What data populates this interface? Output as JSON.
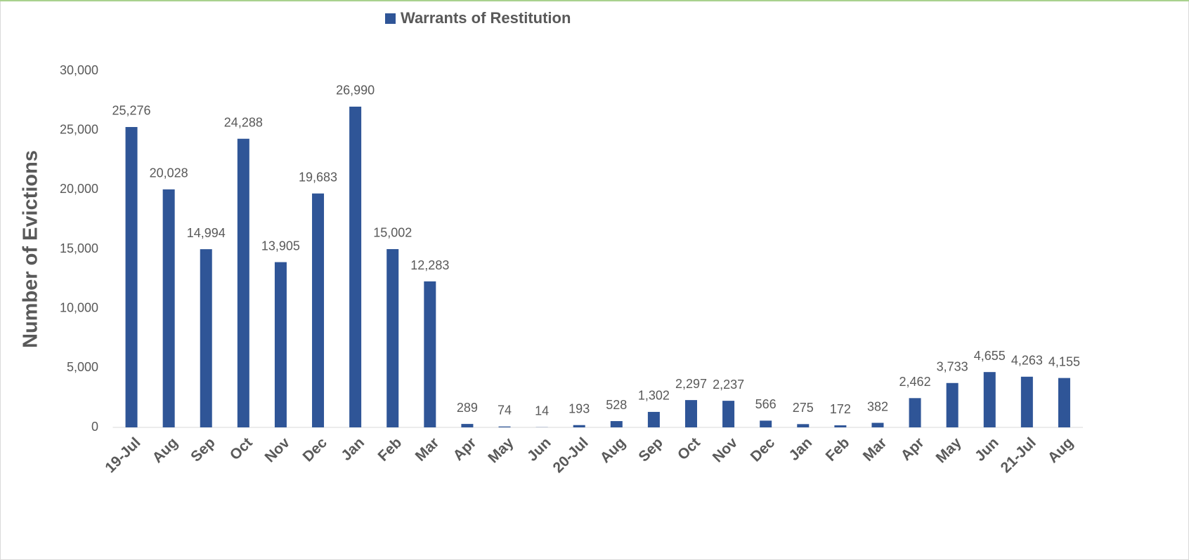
{
  "chart_data": {
    "type": "bar",
    "y_label": "Number of Evictions",
    "categories": [
      "19-Jul",
      "Aug",
      "Sep",
      "Oct",
      "Nov",
      "Dec",
      "Jan",
      "Feb",
      "Mar",
      "Apr",
      "May",
      "Jun",
      "20-Jul",
      "Aug",
      "Sep",
      "Oct",
      "Nov",
      "Dec",
      "Jan",
      "Feb",
      "Mar",
      "Apr",
      "May",
      "Jun",
      "21-Jul",
      "Aug"
    ],
    "series": [
      {
        "name": "Warrants of Restitution",
        "color": "#2f5597",
        "values": [
          25276,
          20028,
          14994,
          24288,
          13905,
          19683,
          26990,
          15002,
          12283,
          289,
          74,
          14,
          193,
          528,
          1302,
          2297,
          2237,
          566,
          275,
          172,
          382,
          2462,
          3733,
          4655,
          4263,
          4155
        ],
        "value_labels": [
          "25,276",
          "20,028",
          "14,994",
          "24,288",
          "13,905",
          "19,683",
          "26,990",
          "15,002",
          "12,283",
          "289",
          "74",
          "14",
          "193",
          "528",
          "1,302",
          "2,297",
          "2,237",
          "566",
          "275",
          "172",
          "382",
          "2,462",
          "3,733",
          "4,655",
          "4,263",
          "4,155"
        ]
      }
    ],
    "ylim": [
      0,
      30000
    ],
    "yticks": [
      0,
      {
        "value": 5000,
        "label": "5,000"
      },
      {
        "value": 10000,
        "label": "10,000"
      },
      {
        "value": 15000,
        "label": "15,000"
      },
      {
        "value": 20000,
        "label": "20,000"
      },
      {
        "value": 25000,
        "label": "25,000"
      },
      {
        "value": 30000,
        "label": "30,000"
      }
    ],
    "grid": false,
    "legend": "top"
  }
}
